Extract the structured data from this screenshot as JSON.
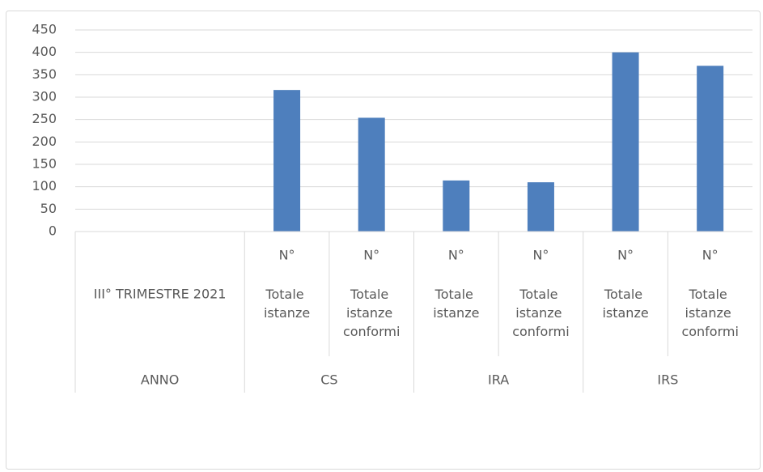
{
  "chart_data": {
    "type": "bar",
    "categories": [
      null,
      null,
      "Totale istanze",
      "Totale istanze conformi",
      "Totale istanze",
      "Totale istanze conformi",
      "Totale istanze",
      "Totale istanze conformi"
    ],
    "unit_labels": [
      null,
      null,
      "N°",
      "N°",
      "N°",
      "N°",
      "N°",
      "N°"
    ],
    "groups": [
      {
        "label": "ANNO",
        "sub": "III° TRIMESTRE 2021",
        "span": 2
      },
      {
        "label": "CS",
        "span": 2
      },
      {
        "label": "IRA",
        "span": 2
      },
      {
        "label": "IRS",
        "span": 2
      }
    ],
    "values": [
      null,
      null,
      316,
      254,
      114,
      110,
      400,
      370
    ],
    "color": "#4e7fbd",
    "ylim": [
      0,
      450
    ],
    "yticks": [
      0,
      50,
      100,
      150,
      200,
      250,
      300,
      350,
      400,
      450
    ],
    "grid": true
  }
}
